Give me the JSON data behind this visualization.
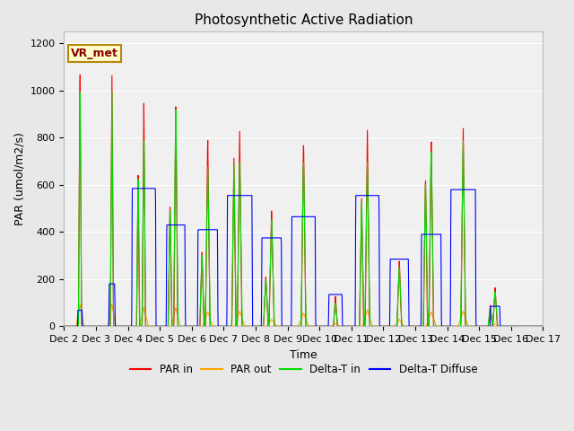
{
  "title": "Photosynthetic Active Radiation",
  "ylabel": "PAR (umol/m2/s)",
  "xlabel": "Time",
  "annotation": "VR_met",
  "ylim": [
    0,
    1250
  ],
  "xlim_start": 2,
  "xlim_end": 17,
  "colors": {
    "PAR_in": "#ff0000",
    "PAR_out": "#ffa500",
    "Delta_T_in": "#00dd00",
    "Delta_T_Diffuse": "#0000ff"
  },
  "legend_labels": [
    "PAR in",
    "PAR out",
    "Delta-T in",
    "Delta-T Diffuse"
  ],
  "fig_facecolor": "#e8e8e8",
  "axes_facecolor": "#f0f0f0",
  "title_fontsize": 11,
  "label_fontsize": 9,
  "tick_fontsize": 8,
  "day_ticks": [
    2,
    3,
    4,
    5,
    6,
    7,
    8,
    9,
    10,
    11,
    12,
    13,
    14,
    15,
    16,
    17
  ],
  "day_labels": [
    "Dec 2",
    "Dec 3",
    "Dec 4",
    "Dec 5",
    "Dec 6",
    "Dec 7",
    "Dec 8",
    "Dec 9",
    "Dec 10",
    "Dec 11",
    "Dec 12",
    "Dec 13",
    "Dec 14",
    "Dec 15",
    "Dec 16",
    "Dec 17"
  ],
  "yticks": [
    0,
    200,
    400,
    600,
    800,
    1000,
    1200
  ],
  "day_peak_data": {
    "PAR_in": [
      1130,
      1080,
      970,
      985,
      815,
      830,
      500,
      810,
      130,
      835,
      285,
      820,
      855,
      165,
      0,
      0
    ],
    "PAR_out": [
      95,
      95,
      80,
      80,
      62,
      65,
      30,
      57,
      12,
      70,
      30,
      62,
      65,
      10,
      0,
      0
    ],
    "DT_in": [
      1050,
      1010,
      805,
      965,
      695,
      700,
      460,
      730,
      100,
      700,
      255,
      770,
      800,
      148,
      0,
      0
    ],
    "DT_diff": [
      68,
      180,
      585,
      430,
      410,
      555,
      375,
      465,
      135,
      555,
      285,
      390,
      580,
      85,
      0,
      0
    ],
    "DT_diff_width": [
      0.08,
      0.1,
      0.38,
      0.3,
      0.32,
      0.4,
      0.32,
      0.38,
      0.22,
      0.38,
      0.3,
      0.32,
      0.4,
      0.16,
      0,
      0
    ],
    "PAR_in_width": [
      0.05,
      0.05,
      0.05,
      0.06,
      0.07,
      0.07,
      0.08,
      0.07,
      0.06,
      0.07,
      0.07,
      0.07,
      0.07,
      0.07,
      0,
      0
    ],
    "DT_in_width": [
      0.05,
      0.05,
      0.06,
      0.07,
      0.08,
      0.08,
      0.09,
      0.08,
      0.07,
      0.08,
      0.08,
      0.08,
      0.08,
      0.08,
      0,
      0
    ],
    "PAR_out_width": [
      0.06,
      0.06,
      0.07,
      0.07,
      0.08,
      0.08,
      0.08,
      0.08,
      0.06,
      0.08,
      0.07,
      0.08,
      0.08,
      0.06,
      0,
      0
    ]
  },
  "secondary_peaks": {
    "PAR_in": [
      0,
      0,
      660,
      540,
      325,
      715,
      215,
      0,
      0,
      545,
      0,
      650,
      0,
      90,
      0,
      0
    ],
    "DT_in": [
      0,
      0,
      640,
      520,
      310,
      690,
      200,
      0,
      0,
      530,
      0,
      630,
      0,
      80,
      0,
      0
    ],
    "offsets": [
      0,
      0,
      -0.18,
      -0.18,
      -0.18,
      -0.18,
      -0.18,
      0,
      0,
      -0.18,
      0,
      -0.18,
      0,
      -0.15,
      0,
      0
    ]
  }
}
